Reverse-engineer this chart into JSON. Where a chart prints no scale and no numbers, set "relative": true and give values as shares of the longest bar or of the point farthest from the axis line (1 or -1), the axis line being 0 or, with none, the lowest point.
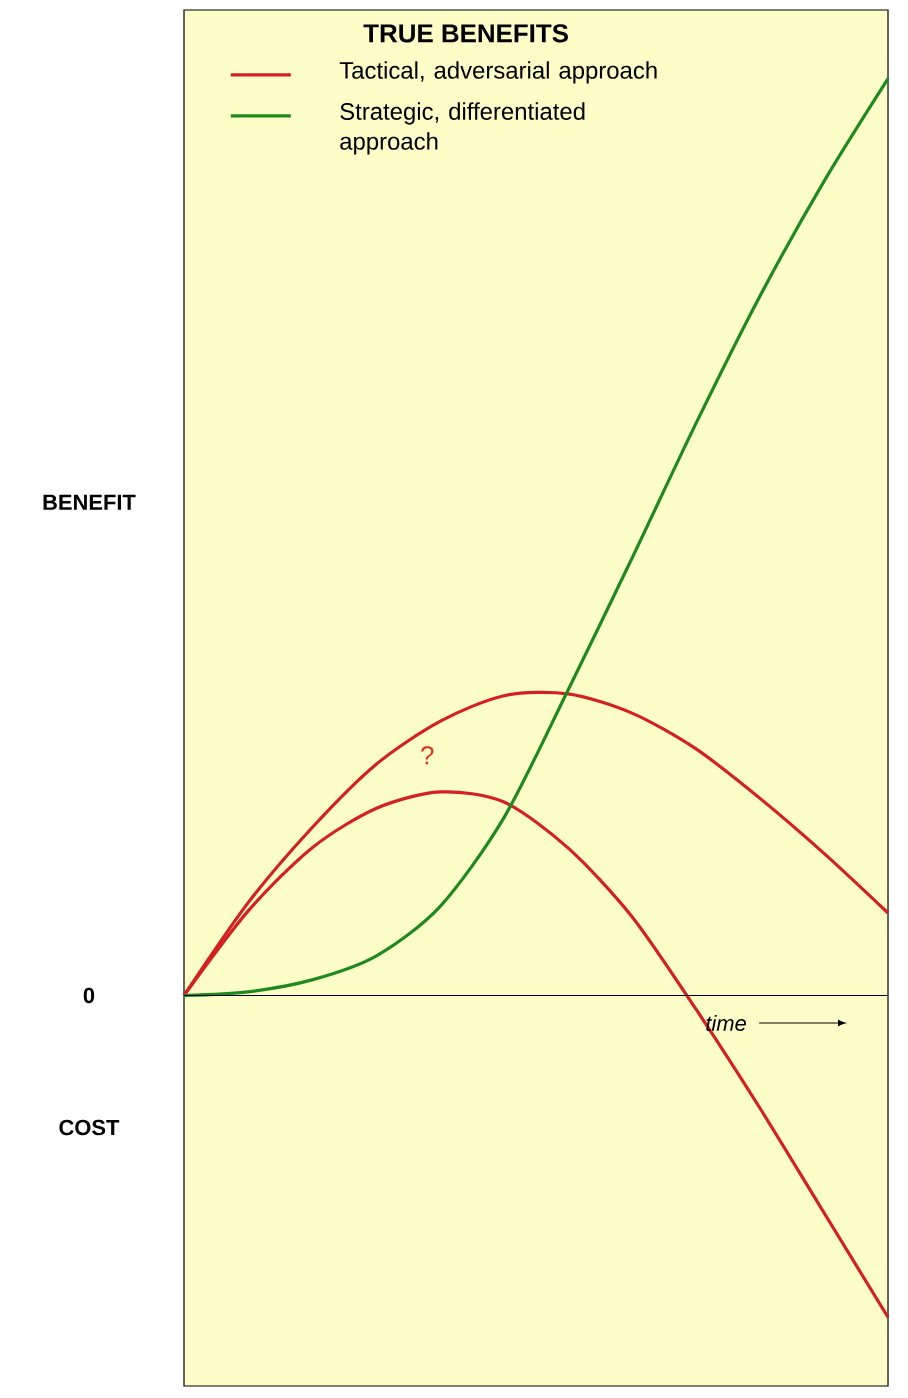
{
  "chart_data": {
    "type": "line",
    "relative": true,
    "legend_title": "TRUE BENEFITS",
    "xlabel": "time",
    "legend": "top left",
    "marker": "none",
    "line_style": "solid",
    "categories": [
      null,
      null,
      null,
      null,
      null,
      null,
      null,
      null,
      null,
      null,
      null,
      null
    ],
    "series": [
      {
        "name": "Tactical, adversarial approach",
        "color": "#d42020",
        "values": [
          0,
          0.101,
          0.183,
          0.252,
          0.299,
          0.327,
          0.329,
          0.308,
          0.269,
          0.215,
          0.155,
          0.09
        ]
      },
      {
        "color": "#d42020",
        "values": [
          0,
          0.092,
          0.161,
          0.204,
          0.222,
          0.211,
          0.161,
          0.086,
          -0.015,
          -0.123,
          -0.237,
          -0.351
        ]
      },
      {
        "name": "Strategic, differentiated approach",
        "color": "#1e8a1e",
        "values": [
          0,
          0.004,
          0.017,
          0.043,
          0.097,
          0.194,
          0.333,
          0.477,
          0.624,
          0.763,
          0.888,
          1
        ]
      }
    ],
    "annotations": [
      "BENEFIT",
      "0",
      "COST",
      "?"
    ]
  }
}
